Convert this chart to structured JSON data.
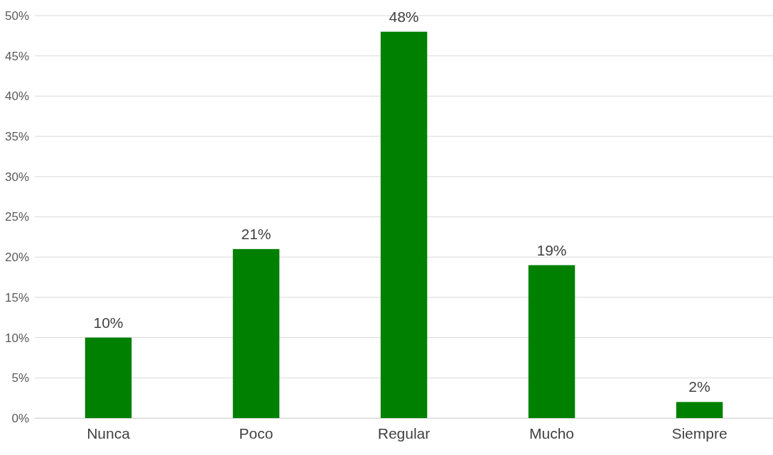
{
  "chart_data": {
    "type": "bar",
    "categories": [
      "Nunca",
      "Poco",
      "Regular",
      "Mucho",
      "Siempre"
    ],
    "values": [
      10,
      21,
      48,
      19,
      2
    ],
    "value_labels": [
      "10%",
      "21%",
      "48%",
      "19%",
      "2%"
    ],
    "color": "#008000",
    "ylim": [
      0,
      50
    ],
    "yticks": [
      {
        "value": 0,
        "label": "0%"
      },
      {
        "value": 5,
        "label": "5%"
      },
      {
        "value": 10,
        "label": "10%"
      },
      {
        "value": 15,
        "label": "15%"
      },
      {
        "value": 20,
        "label": "20%"
      },
      {
        "value": 25,
        "label": "25%"
      },
      {
        "value": 30,
        "label": "30%"
      },
      {
        "value": 35,
        "label": "35%"
      },
      {
        "value": 40,
        "label": "40%"
      },
      {
        "value": 45,
        "label": "45%"
      },
      {
        "value": 50,
        "label": "50%"
      }
    ],
    "grid": "y"
  }
}
